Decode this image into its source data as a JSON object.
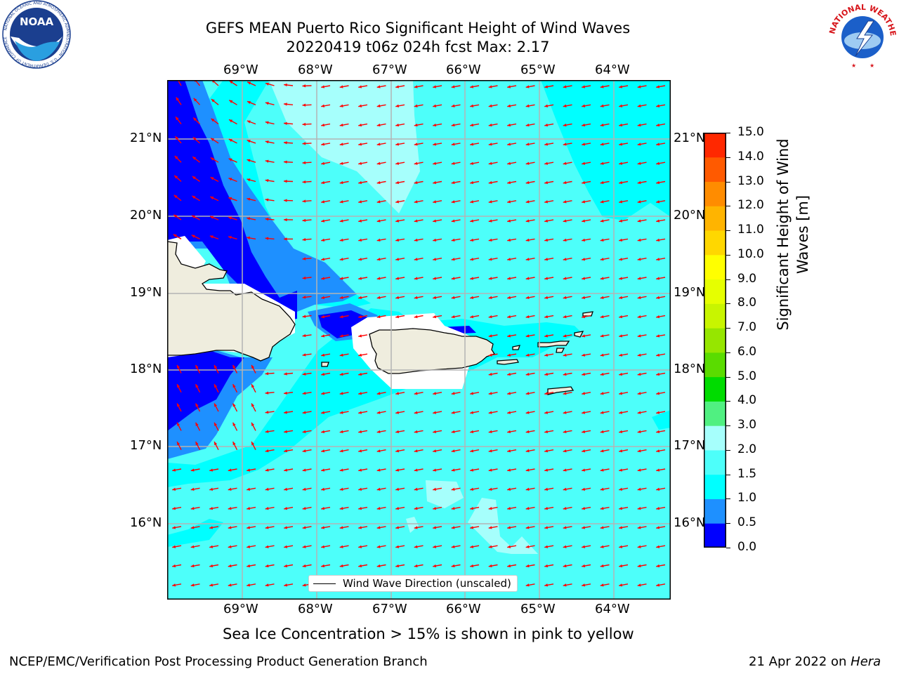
{
  "title_line1": "GEFS MEAN Puerto Rico Significant Height of Wind Waves",
  "title_line2": "20220419 t06z 024h fcst   Max: 2.17",
  "logos": {
    "left": {
      "name": "NOAA",
      "ring_text": "NATIONAL OCEANIC AND ATMOSPHERIC ADMINISTRATION · U.S. DEPARTMENT OF COMMERCE"
    },
    "right": {
      "name": "NATIONAL WEATHER SERVICE"
    }
  },
  "map": {
    "lon_labels": [
      "69°W",
      "68°W",
      "67°W",
      "66°W",
      "65°W",
      "64°W"
    ],
    "lat_labels": [
      "21°N",
      "20°N",
      "19°N",
      "18°N",
      "17°N",
      "16°N"
    ],
    "legend_label": "Wind Wave Direction (unscaled)",
    "colors": {
      "ocean_15_20": "#4dfffa",
      "ocean_20_30": "#a6fffc",
      "ocean_10_15": "#00ffff",
      "ocean_05_10": "#1e90ff",
      "ocean_00_05": "#0000ff",
      "land": "#efedde",
      "arrow": "#ff0000"
    }
  },
  "colorbar": {
    "label_line1": "Significant Height of Wind",
    "label_line2": "Waves [m]",
    "ticks": [
      "0.0",
      "0.5",
      "1.0",
      "1.5",
      "2.0",
      "3.0",
      "4.0",
      "5.0",
      "6.0",
      "7.0",
      "8.0",
      "9.0",
      "10.0",
      "11.0",
      "12.0",
      "13.0",
      "14.0",
      "15.0"
    ],
    "colors": [
      "#0000ff",
      "#1e90ff",
      "#00ffff",
      "#4dfffa",
      "#a6fffc",
      "#50f081",
      "#00dc00",
      "#5adc00",
      "#96e600",
      "#c8f500",
      "#e6ff00",
      "#ffff00",
      "#ffd700",
      "#ffb400",
      "#ff8c00",
      "#ff5a00",
      "#ff2800"
    ]
  },
  "subtitle": "Sea Ice Concentration > 15% is shown in pink to yellow",
  "footer_left": "NCEP/EMC/Verification Post Processing Product Generation Branch",
  "footer_right_date": "21 Apr 2022 on ",
  "footer_right_host": "Hera"
}
